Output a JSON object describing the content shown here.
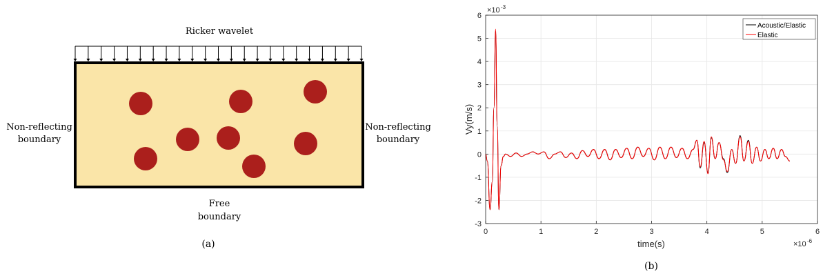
{
  "panel_a": {
    "top_label": "Ricker wavelet",
    "left_label": [
      "Non-reflecting",
      "boundary"
    ],
    "right_label": [
      "Non-reflecting",
      "boundary"
    ],
    "bottom_label": [
      "Free",
      "boundary"
    ],
    "caption": "(a)",
    "colors": {
      "domain_fill": "#fae5a8",
      "inclusion": "#ab1f1c",
      "border": "#000000"
    },
    "inclusion_count": 8,
    "arrow_count": 23
  },
  "panel_b": {
    "caption": "(b)",
    "exponent_y": "×10",
    "exponent_y_power": "-3",
    "exponent_x": "×10",
    "exponent_x_power": "-6"
  },
  "chart_data": {
    "type": "line",
    "xlabel": "time(s)",
    "ylabel": "Vy(m/s)",
    "xlim": [
      0,
      6
    ],
    "ylim": [
      -3,
      6
    ],
    "x_ticks": [
      "0",
      "1",
      "2",
      "3",
      "4",
      "5",
      "6"
    ],
    "y_ticks": [
      "-3",
      "-2",
      "-1",
      "0",
      "1",
      "2",
      "3",
      "4",
      "5",
      "6"
    ],
    "x_scale_note": "×10^-6",
    "y_scale_note": "×10^-3",
    "grid": true,
    "legend_position": "top-right",
    "series": [
      {
        "name": "Acoustic/Elastic",
        "color": "#000000",
        "x": [
          0,
          0.03,
          0.08,
          0.12,
          0.15,
          0.18,
          0.21,
          0.24,
          0.28,
          0.32,
          0.36,
          0.45,
          0.55,
          0.65,
          0.75,
          0.85,
          0.95,
          1.05,
          1.15,
          1.25,
          1.35,
          1.45,
          1.55,
          1.65,
          1.75,
          1.85,
          1.95,
          2.05,
          2.15,
          2.25,
          2.35,
          2.45,
          2.55,
          2.65,
          2.75,
          2.85,
          2.95,
          3.05,
          3.15,
          3.25,
          3.35,
          3.45,
          3.55,
          3.65,
          3.75,
          3.82,
          3.88,
          3.95,
          4.02,
          4.08,
          4.15,
          4.22,
          4.3,
          4.37,
          4.45,
          4.52,
          4.6,
          4.67,
          4.75,
          4.82,
          4.9,
          4.97,
          5.05,
          5.12,
          5.2,
          5.27,
          5.35,
          5.42,
          5.5
        ],
        "values": [
          0,
          -0.3,
          -2.4,
          -1.2,
          2.0,
          5.3,
          1.2,
          -2.4,
          -0.5,
          -0.1,
          0.0,
          -0.1,
          0.05,
          -0.1,
          0.0,
          0.1,
          0.0,
          0.1,
          -0.2,
          0.0,
          0.1,
          -0.15,
          0.05,
          -0.2,
          0.15,
          -0.1,
          0.2,
          -0.2,
          0.2,
          -0.25,
          0.2,
          -0.15,
          0.25,
          -0.2,
          0.3,
          -0.1,
          0.25,
          -0.25,
          0.3,
          -0.2,
          0.3,
          -0.15,
          0.25,
          -0.2,
          0.2,
          0.6,
          -0.6,
          0.5,
          -0.8,
          0.7,
          -0.2,
          0.5,
          -0.2,
          -0.8,
          0.2,
          -0.4,
          0.8,
          -0.3,
          0.6,
          -0.4,
          0.3,
          -0.3,
          0.2,
          -0.2,
          0.25,
          -0.2,
          0.2,
          -0.1,
          -0.3
        ]
      },
      {
        "name": "Elastic",
        "color": "#ff0000",
        "x": [
          0,
          0.03,
          0.08,
          0.12,
          0.15,
          0.18,
          0.21,
          0.24,
          0.28,
          0.32,
          0.36,
          0.45,
          0.55,
          0.65,
          0.75,
          0.85,
          0.95,
          1.05,
          1.15,
          1.25,
          1.35,
          1.45,
          1.55,
          1.65,
          1.75,
          1.85,
          1.95,
          2.05,
          2.15,
          2.25,
          2.35,
          2.45,
          2.55,
          2.65,
          2.75,
          2.85,
          2.95,
          3.05,
          3.15,
          3.25,
          3.35,
          3.45,
          3.55,
          3.65,
          3.75,
          3.82,
          3.88,
          3.95,
          4.02,
          4.08,
          4.15,
          4.22,
          4.3,
          4.37,
          4.45,
          4.52,
          4.6,
          4.67,
          4.75,
          4.82,
          4.9,
          4.97,
          5.05,
          5.12,
          5.2,
          5.27,
          5.35,
          5.42,
          5.5
        ],
        "values": [
          0,
          -0.3,
          -2.4,
          -1.2,
          2.0,
          5.4,
          1.2,
          -2.4,
          -0.5,
          -0.1,
          0.0,
          -0.1,
          0.05,
          -0.1,
          0.0,
          0.1,
          0.0,
          0.1,
          -0.2,
          0.0,
          0.1,
          -0.15,
          0.05,
          -0.2,
          0.15,
          -0.1,
          0.2,
          -0.2,
          0.2,
          -0.25,
          0.2,
          -0.15,
          0.25,
          -0.2,
          0.3,
          -0.1,
          0.25,
          -0.25,
          0.3,
          -0.2,
          0.3,
          -0.15,
          0.25,
          -0.2,
          0.2,
          0.6,
          -0.55,
          0.55,
          -0.85,
          0.75,
          -0.2,
          0.5,
          -0.25,
          -0.75,
          0.2,
          -0.4,
          0.75,
          -0.3,
          0.55,
          -0.4,
          0.3,
          -0.3,
          0.2,
          -0.2,
          0.25,
          -0.2,
          0.2,
          -0.1,
          -0.3
        ]
      }
    ]
  }
}
